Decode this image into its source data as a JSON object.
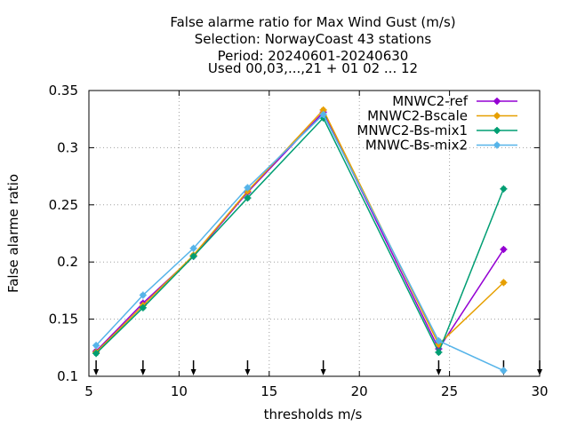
{
  "chart_data": {
    "type": "line",
    "title_lines": [
      "False alarme ratio  for Max Wind Gust (m/s)",
      "Selection: NorwayCoast     43 stations",
      "Period: 20240601-20240630",
      "Used 00,03,...,21 + 01 02 ... 12"
    ],
    "xlabel": "thresholds m/s",
    "ylabel": "False alarme ratio",
    "xlim": [
      5,
      30
    ],
    "ylim": [
      0.1,
      0.35
    ],
    "xticks": [
      5,
      10,
      15,
      20,
      25,
      30
    ],
    "xtick_labels": [
      "5",
      "10",
      "15",
      "20",
      "25",
      "30"
    ],
    "yticks": [
      0.1,
      0.15,
      0.2,
      0.25,
      0.3,
      0.35
    ],
    "ytick_labels": [
      "0.1",
      "0.15",
      "0.2",
      "0.25",
      "0.3",
      "0.35"
    ],
    "grid": true,
    "legend_position": "top-right",
    "arrow_x": [
      5.4,
      8,
      10.8,
      13.8,
      18,
      24.4,
      28,
      30
    ],
    "series": [
      {
        "name": "MNWC2-ref",
        "color": "#9400d3",
        "x": [
          5.4,
          8,
          10.8,
          13.8,
          18,
          24.4,
          28
        ],
        "y": [
          0.122,
          0.164,
          0.205,
          0.261,
          0.331,
          0.124,
          0.211
        ]
      },
      {
        "name": "MNWC2-Bscale",
        "color": "#e69f00",
        "x": [
          5.4,
          8,
          10.8,
          13.8,
          18,
          24.4,
          28
        ],
        "y": [
          0.121,
          0.162,
          0.206,
          0.262,
          0.333,
          0.128,
          0.182
        ]
      },
      {
        "name": "MNWC2-Bs-mix1",
        "color": "#009e73",
        "x": [
          5.4,
          8,
          10.8,
          13.8,
          18,
          24.4,
          28
        ],
        "y": [
          0.12,
          0.16,
          0.205,
          0.256,
          0.326,
          0.121,
          0.264
        ]
      },
      {
        "name": "MNWC-Bs-mix2",
        "color": "#56b4e9",
        "x": [
          5.4,
          8,
          10.8,
          13.8,
          18,
          24.4,
          28
        ],
        "y": [
          0.127,
          0.171,
          0.212,
          0.265,
          0.329,
          0.131,
          0.105
        ]
      }
    ]
  }
}
